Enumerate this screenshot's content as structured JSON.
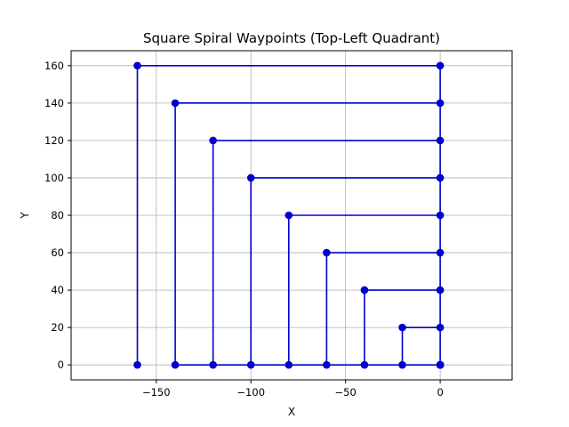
{
  "chart_data": {
    "type": "line",
    "title": "Square Spiral Waypoints (Top-Left Quadrant)",
    "xlabel": "X",
    "ylabel": "Y",
    "xlim": [
      -195,
      38
    ],
    "ylim": [
      -8,
      168
    ],
    "xticks": [
      -150,
      -100,
      -50,
      0
    ],
    "xtick_labels": [
      "−150",
      "−100",
      "−50",
      "0"
    ],
    "yticks": [
      0,
      20,
      40,
      60,
      80,
      100,
      120,
      140,
      160
    ],
    "ytick_labels": [
      "0",
      "20",
      "40",
      "60",
      "80",
      "100",
      "120",
      "140",
      "160"
    ],
    "grid": true,
    "legend": "none",
    "series": [
      {
        "color": "#0000cc",
        "marker": "circle",
        "x": [
          0,
          -20,
          -20,
          0,
          0,
          -40,
          -40,
          0,
          0,
          -60,
          -60,
          0,
          0,
          -80,
          -80,
          0,
          0,
          -100,
          -100,
          0,
          0,
          -120,
          -120,
          0,
          0,
          -140,
          -140,
          0,
          0,
          -160,
          -160
        ],
        "y": [
          0,
          0,
          20,
          20,
          40,
          40,
          0,
          0,
          60,
          60,
          0,
          0,
          80,
          80,
          0,
          0,
          100,
          100,
          0,
          0,
          120,
          120,
          0,
          0,
          140,
          140,
          0,
          0,
          160,
          160,
          0
        ]
      }
    ]
  }
}
